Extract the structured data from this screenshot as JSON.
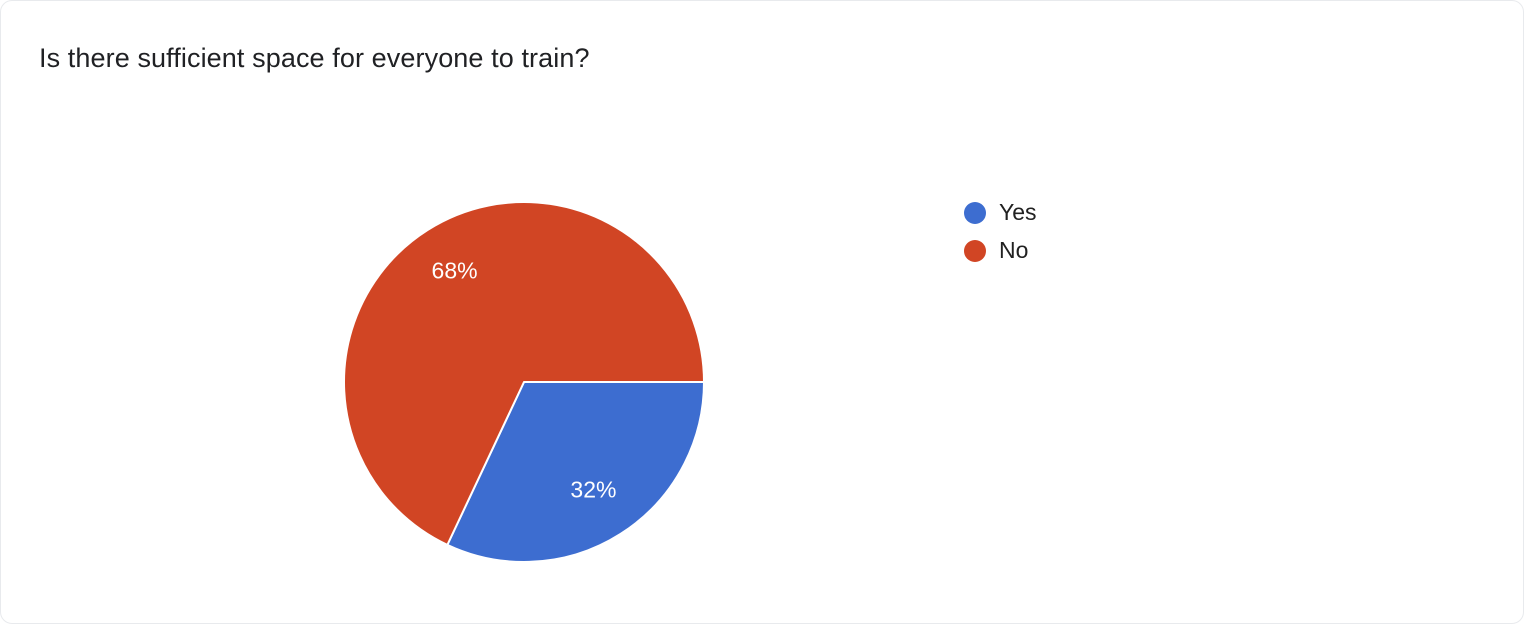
{
  "page": {
    "title": "Is there sufficient space for everyone to train?"
  },
  "chart_data": {
    "type": "pie",
    "title": "Is there sufficient space for everyone to train?",
    "slices": [
      {
        "label": "Yes",
        "value": 32,
        "display": "32%",
        "color": "#3d6dd0"
      },
      {
        "label": "No",
        "value": 68,
        "display": "68%",
        "color": "#d14524"
      }
    ],
    "start_angle_deg": 0,
    "direction": "clockwise",
    "legend_position": "right",
    "slice_label_color": "#ffffff",
    "slice_border_color": "#ffffff"
  }
}
